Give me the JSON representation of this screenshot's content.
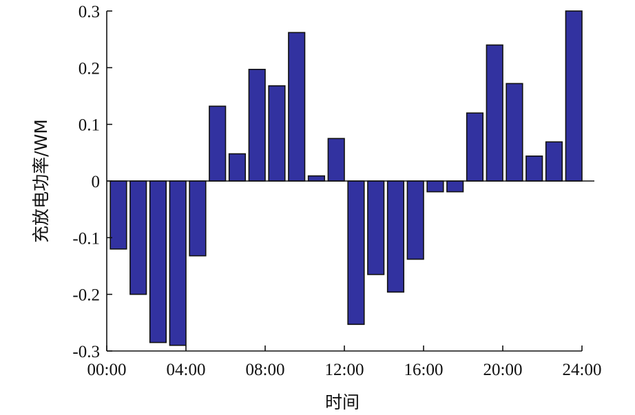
{
  "chart_data": {
    "type": "bar",
    "xlabel": "时间",
    "ylabel": "充放电功率/WM",
    "ylim": [
      -0.3,
      0.3
    ],
    "yticks": [
      0.3,
      0.2,
      0.1,
      0,
      -0.1,
      -0.2,
      -0.3
    ],
    "ytick_labels": [
      "0.3",
      "0.2",
      "0.1",
      "0",
      "-0.1",
      "-0.2",
      "-0.3"
    ],
    "xlim": [
      0,
      24
    ],
    "xticks": [
      0,
      4,
      8,
      12,
      16,
      20,
      24
    ],
    "xtick_labels": [
      "00:00",
      "04:00",
      "08:00",
      "12:00",
      "16:00",
      "20:00",
      "24:00"
    ],
    "x": [
      1,
      2,
      3,
      4,
      5,
      6,
      7,
      8,
      9,
      10,
      11,
      12,
      13,
      14,
      15,
      16,
      17,
      18,
      19,
      20,
      21,
      22,
      23,
      24
    ],
    "values": [
      -0.12,
      -0.2,
      -0.285,
      -0.29,
      -0.132,
      0.132,
      0.048,
      0.197,
      0.168,
      0.262,
      0.009,
      0.075,
      -0.253,
      -0.165,
      -0.196,
      -0.138,
      -0.019,
      -0.019,
      0.12,
      0.24,
      0.172,
      0.044,
      0.069,
      0.3
    ],
    "bar_color": "#3232a0",
    "bar_edge_color": "#111111",
    "grid": false,
    "legend": "none"
  }
}
